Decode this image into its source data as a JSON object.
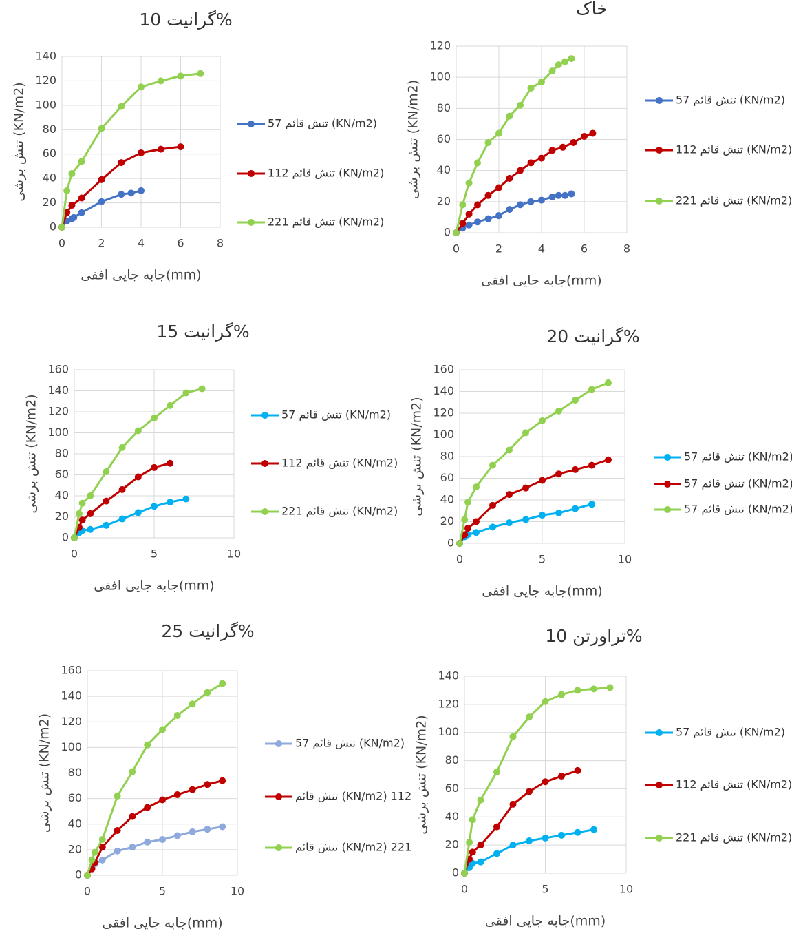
{
  "chart_data": [
    {
      "type": "line",
      "title": "گرانیت 10%",
      "xlabel": "جابه جایی افقی(mm)",
      "ylabel": "تنش برشی  (KN/m2)",
      "xlim": [
        0,
        8
      ],
      "xticks": [
        0,
        2,
        4,
        6,
        8
      ],
      "ylim": [
        0,
        140
      ],
      "yticks": [
        0,
        20,
        40,
        60,
        80,
        100,
        120,
        140
      ],
      "grid": true,
      "legend": "right",
      "series": [
        {
          "name": "تنش قائم 57 (KN/m2)",
          "color": "#4472c4",
          "x": [
            0,
            0.25,
            0.5,
            0.6,
            1,
            2,
            3,
            3.5,
            4
          ],
          "values": [
            0,
            5,
            7,
            8,
            12,
            21,
            27,
            28,
            30
          ]
        },
        {
          "name": "تنش قائم 112 (KN/m2)",
          "color": "#c00000",
          "x": [
            0,
            0.25,
            0.5,
            1,
            2,
            3,
            4,
            5,
            6
          ],
          "values": [
            0,
            12,
            18,
            24,
            39,
            53,
            61,
            64,
            66
          ]
        },
        {
          "name": "تنش قائم 221 (KN/m2)",
          "color": "#92d050",
          "x": [
            0,
            0.25,
            0.5,
            1,
            2,
            3,
            4,
            5,
            6,
            7
          ],
          "values": [
            0,
            30,
            44,
            54,
            81,
            99,
            115,
            120,
            124,
            126
          ]
        }
      ]
    },
    {
      "type": "line",
      "title": "خاک",
      "xlabel": "جابه جایی افقی(mm)",
      "ylabel": "تنش برشی  (KN/m2)",
      "xlim": [
        0,
        8
      ],
      "xticks": [
        0,
        2,
        4,
        6,
        8
      ],
      "ylim": [
        0,
        120
      ],
      "yticks": [
        0,
        20,
        40,
        60,
        80,
        100,
        120
      ],
      "grid": true,
      "legend": "right",
      "series": [
        {
          "name": "تنش قائم 57 (KN/m2)",
          "color": "#4472c4",
          "x": [
            0,
            0.3,
            0.6,
            1,
            1.5,
            2,
            2.5,
            3,
            3.5,
            4,
            4.5,
            4.8,
            5.1,
            5.4
          ],
          "values": [
            0,
            3,
            5,
            7,
            9,
            11,
            15,
            18,
            20,
            21,
            23,
            24,
            24,
            25
          ]
        },
        {
          "name": "تنش قائم 112 (KN/m2)",
          "color": "#c00000",
          "x": [
            0,
            0.3,
            0.6,
            1,
            1.5,
            2,
            2.5,
            3,
            3.5,
            4,
            4.5,
            5,
            5.5,
            6,
            6.4
          ],
          "values": [
            0,
            6,
            12,
            18,
            24,
            29,
            35,
            40,
            45,
            48,
            53,
            55,
            58,
            62,
            64
          ]
        },
        {
          "name": "تنش قائم 221 (KN/m2)",
          "color": "#92d050",
          "x": [
            0,
            0.3,
            0.6,
            1,
            1.5,
            2,
            2.5,
            3,
            3.5,
            4,
            4.5,
            4.8,
            5.1,
            5.4
          ],
          "values": [
            0,
            18,
            32,
            45,
            58,
            64,
            75,
            82,
            93,
            97,
            104,
            108,
            110,
            112
          ]
        }
      ]
    },
    {
      "type": "line",
      "title": "گرانیت 15%",
      "xlabel": "جابه جایی افقی(mm)",
      "ylabel": "تنش برشی  (KN/m2)",
      "xlim": [
        0,
        10
      ],
      "xticks": [
        0,
        5,
        10
      ],
      "ylim": [
        0,
        160
      ],
      "yticks": [
        0,
        20,
        40,
        60,
        80,
        100,
        120,
        140,
        160
      ],
      "grid": true,
      "legend": "right",
      "series": [
        {
          "name": "تنش قائم 57 (KN/m2)",
          "color": "#00b0f0",
          "x": [
            0,
            0.3,
            0.5,
            1,
            2,
            3,
            4,
            5,
            6,
            7
          ],
          "values": [
            0,
            5,
            7,
            8,
            12,
            18,
            24,
            30,
            34,
            37
          ]
        },
        {
          "name": "تنش قائم 112 (KN/m2)",
          "color": "#c00000",
          "x": [
            0,
            0.3,
            0.5,
            1,
            2,
            3,
            4,
            5,
            6
          ],
          "values": [
            0,
            10,
            17,
            23,
            35,
            46,
            58,
            67,
            71
          ]
        },
        {
          "name": "تنش قائم 221 (KN/m2)",
          "color": "#92d050",
          "x": [
            0,
            0.3,
            0.5,
            1,
            2,
            3,
            4,
            5,
            6,
            7,
            8
          ],
          "values": [
            0,
            23,
            33,
            40,
            63,
            86,
            102,
            114,
            126,
            138,
            142
          ]
        }
      ]
    },
    {
      "type": "line",
      "title": "گرانیت 20%",
      "xlabel": "جابه جایی افقی(mm)",
      "ylabel": "تنش برشی  (KN/m2)",
      "xlim": [
        0,
        10
      ],
      "xticks": [
        0,
        5,
        10
      ],
      "ylim": [
        0,
        160
      ],
      "yticks": [
        0,
        20,
        40,
        60,
        80,
        100,
        120,
        140,
        160
      ],
      "grid": true,
      "legend": "right",
      "series": [
        {
          "name": "تنش قائم 57 (KN/m2)",
          "color": "#00b0f0",
          "x": [
            0,
            0.3,
            0.5,
            1,
            2,
            3,
            4,
            5,
            6,
            7,
            8
          ],
          "values": [
            0,
            6,
            8,
            10,
            15,
            19,
            22,
            26,
            28,
            32,
            36
          ]
        },
        {
          "name": "تنش قائم 57 (KN/m2)",
          "color": "#c00000",
          "x": [
            0,
            0.3,
            0.5,
            1,
            2,
            3,
            4,
            5,
            6,
            7,
            8,
            9
          ],
          "values": [
            0,
            8,
            14,
            20,
            35,
            45,
            51,
            58,
            64,
            68,
            72,
            77
          ]
        },
        {
          "name": "تنش قائم 57 (KN/m2)",
          "color": "#92d050",
          "x": [
            0,
            0.3,
            0.5,
            1,
            2,
            3,
            4,
            5,
            6,
            7,
            8,
            9
          ],
          "values": [
            0,
            22,
            38,
            52,
            72,
            86,
            102,
            113,
            122,
            132,
            142,
            148
          ]
        }
      ]
    },
    {
      "type": "line",
      "title": "گرانیت 25%",
      "xlabel": "جابه جایی افقی(mm)",
      "ylabel": "تنش برشی  (KN/m2)",
      "xlim": [
        0,
        10
      ],
      "xticks": [
        0,
        5,
        10
      ],
      "ylim": [
        0,
        160
      ],
      "yticks": [
        0,
        20,
        40,
        60,
        80,
        100,
        120,
        140,
        160
      ],
      "grid": true,
      "legend": "right",
      "series": [
        {
          "name": "تنش قائم 57 (KN/m2)",
          "color": "#8ea9db",
          "x": [
            0,
            0.3,
            0.5,
            1,
            2,
            3,
            4,
            5,
            6,
            7,
            8,
            9
          ],
          "values": [
            0,
            6,
            9,
            12,
            19,
            22,
            26,
            28,
            31,
            34,
            36,
            38
          ]
        },
        {
          "name": "تنش قائم (KN/m2) 112",
          "color": "#c00000",
          "x": [
            0,
            0.3,
            0.5,
            1,
            2,
            3,
            4,
            5,
            6,
            7,
            8,
            9
          ],
          "values": [
            0,
            5,
            10,
            22,
            35,
            46,
            53,
            59,
            63,
            67,
            71,
            74
          ]
        },
        {
          "name": "تنش قائم (KN/m2) 221",
          "color": "#92d050",
          "x": [
            0,
            0.3,
            0.5,
            1,
            2,
            3,
            4,
            5,
            6,
            7,
            8,
            9
          ],
          "values": [
            0,
            12,
            18,
            28,
            62,
            81,
            102,
            114,
            125,
            134,
            143,
            150
          ]
        }
      ]
    },
    {
      "type": "line",
      "title": "تراورتن 10%",
      "xlabel": "جابه جایی افقی(mm)",
      "ylabel": "تنش برشی  (KN/m2)",
      "xlim": [
        0,
        10
      ],
      "xticks": [
        0,
        5,
        10
      ],
      "ylim": [
        0,
        140
      ],
      "yticks": [
        0,
        20,
        40,
        60,
        80,
        100,
        120,
        140
      ],
      "grid": true,
      "legend": "right",
      "series": [
        {
          "name": "تنش قائم 57 (KN/m2)",
          "color": "#00b0f0",
          "x": [
            0,
            0.3,
            0.5,
            1,
            2,
            3,
            4,
            5,
            6,
            7,
            8
          ],
          "values": [
            0,
            4,
            7,
            8,
            14,
            20,
            23,
            25,
            27,
            29,
            31
          ]
        },
        {
          "name": "تنش قائم 112 (KN/m2)",
          "color": "#c00000",
          "x": [
            0,
            0.3,
            0.5,
            1,
            2,
            3,
            4,
            5,
            6,
            7
          ],
          "values": [
            0,
            10,
            15,
            20,
            33,
            49,
            58,
            65,
            69,
            73
          ]
        },
        {
          "name": "تنش قائم 221 (KN/m2)",
          "color": "#92d050",
          "x": [
            0,
            0.3,
            0.5,
            1,
            2,
            3,
            4,
            5,
            6,
            7,
            8,
            9
          ],
          "values": [
            0,
            22,
            38,
            52,
            72,
            97,
            111,
            122,
            127,
            130,
            131,
            132
          ]
        }
      ]
    }
  ]
}
